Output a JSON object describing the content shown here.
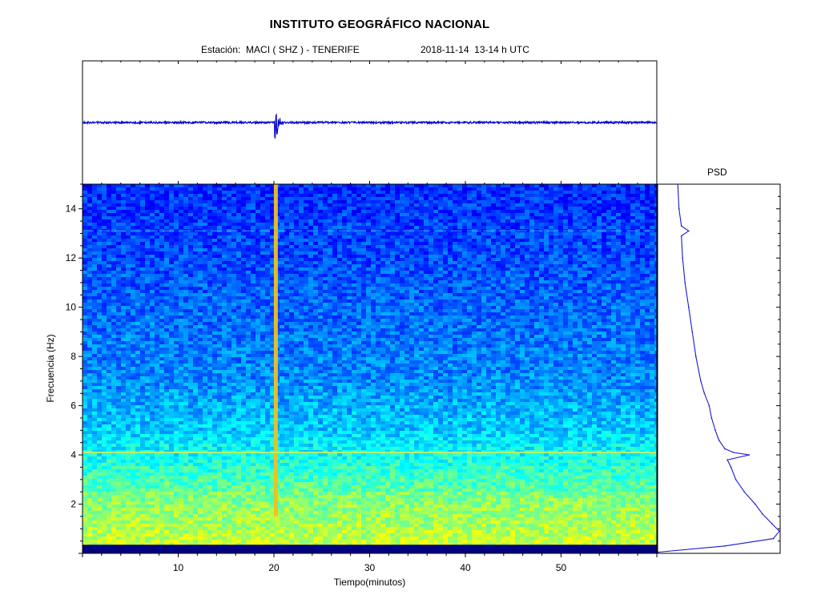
{
  "header": {
    "title": "INSTITUTO GEOGRÁFICO NACIONAL",
    "station": "Estación:  MACI ( SHZ ) - TENERIFE",
    "datetime": "2018-11-14  13-14 h UTC"
  },
  "chart_data": [
    {
      "type": "line",
      "panel": "seismogram",
      "title": "",
      "xlabel": "",
      "ylabel": "",
      "xlim": [
        0,
        60
      ],
      "events": [
        {
          "time_min": 20.2,
          "relative_amplitude": 1.0
        }
      ],
      "color": "#0000cc",
      "grid": false
    },
    {
      "type": "heatmap",
      "panel": "spectrogram",
      "xlabel": "Tiempo(minutos)",
      "ylabel": "Frecuencia  (Hz)",
      "xlim": [
        0,
        60
      ],
      "ylim": [
        0,
        15
      ],
      "x_ticks": [
        10,
        20,
        30,
        40,
        50
      ],
      "y_ticks": [
        2,
        4,
        6,
        8,
        10,
        12,
        14
      ],
      "colormap": [
        "#00007f",
        "#0000ff",
        "#007fff",
        "#00ffff",
        "#7fff7f",
        "#ffff00"
      ],
      "features": {
        "event_time_min": 20.2,
        "event_freq_range_hz": [
          1.5,
          15
        ],
        "persistent_line_hz": 4.1,
        "faint_line_hz": 13.1,
        "energetic_band_hz": [
          0.4,
          2.5
        ],
        "low_cut_hz": 0.35
      },
      "grid": false
    },
    {
      "type": "line",
      "panel": "psd",
      "title": "PSD",
      "y_axis": "Frecuencia (Hz)",
      "ylim": [
        0,
        15
      ],
      "color": "#1a1acc",
      "points_freq_hz": [
        0.05,
        0.3,
        0.6,
        0.9,
        1.2,
        1.6,
        2.0,
        2.5,
        3.0,
        3.5,
        3.8,
        4.0,
        4.1,
        4.25,
        4.6,
        5.0,
        5.5,
        6.0,
        6.5,
        7.0,
        8.0,
        9.0,
        10.0,
        11.0,
        12.0,
        12.9,
        13.1,
        13.3,
        14.0,
        15.0
      ],
      "points_rel_level": [
        0.0,
        0.55,
        0.95,
        1.0,
        0.94,
        0.86,
        0.8,
        0.71,
        0.64,
        0.6,
        0.57,
        0.75,
        0.62,
        0.55,
        0.5,
        0.47,
        0.44,
        0.42,
        0.38,
        0.35,
        0.31,
        0.28,
        0.25,
        0.22,
        0.2,
        0.19,
        0.25,
        0.19,
        0.17,
        0.16
      ]
    }
  ]
}
